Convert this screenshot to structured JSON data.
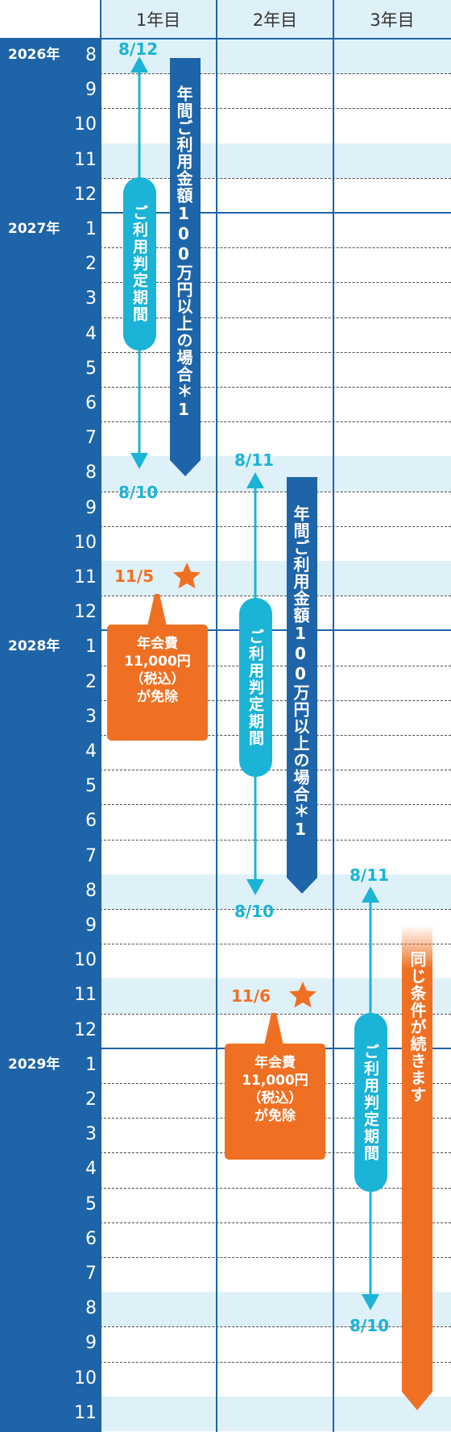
{
  "header": {
    "columns": [
      "1年目",
      "2年目",
      "3年目"
    ]
  },
  "years": [
    {
      "label": "2026年",
      "months": [
        "8",
        "9",
        "10",
        "11",
        "12"
      ]
    },
    {
      "label": "2027年",
      "months": [
        "1",
        "2",
        "3",
        "4",
        "5",
        "6",
        "7",
        "8",
        "9",
        "10",
        "11",
        "12"
      ]
    },
    {
      "label": "2028年",
      "months": [
        "1",
        "2",
        "3",
        "4",
        "5",
        "6",
        "7",
        "8",
        "9",
        "10",
        "11",
        "12"
      ]
    },
    {
      "label": "2029年",
      "months": [
        "1",
        "2",
        "3",
        "4",
        "5",
        "6",
        "7",
        "8",
        "9",
        "10",
        "11"
      ]
    }
  ],
  "year1": {
    "period_start": "8/12",
    "period_end": "8/10",
    "period_label": "ご利用判定期間",
    "condition_label": "年間ご利用金額100万円以上の場合＊1",
    "star_date": "11/5",
    "callout": [
      "年会費",
      "11,000円",
      "（税込）",
      "が免除"
    ]
  },
  "year2": {
    "period_start": "8/11",
    "period_end": "8/10",
    "period_label": "ご利用判定期間",
    "condition_label": "年間ご利用金額100万円以上の場合＊1",
    "star_date": "11/6",
    "callout": [
      "年会費",
      "11,000円",
      "（税込）",
      "が免除"
    ]
  },
  "year3": {
    "period_start": "8/11",
    "period_end": "8/10",
    "period_label": "ご利用判定期間",
    "continue_label": "同じ条件が続きます"
  },
  "colors": {
    "navy": "#1e64a8",
    "cyan": "#1bb3d6",
    "orange": "#f07023",
    "band": "#dff1f8"
  }
}
